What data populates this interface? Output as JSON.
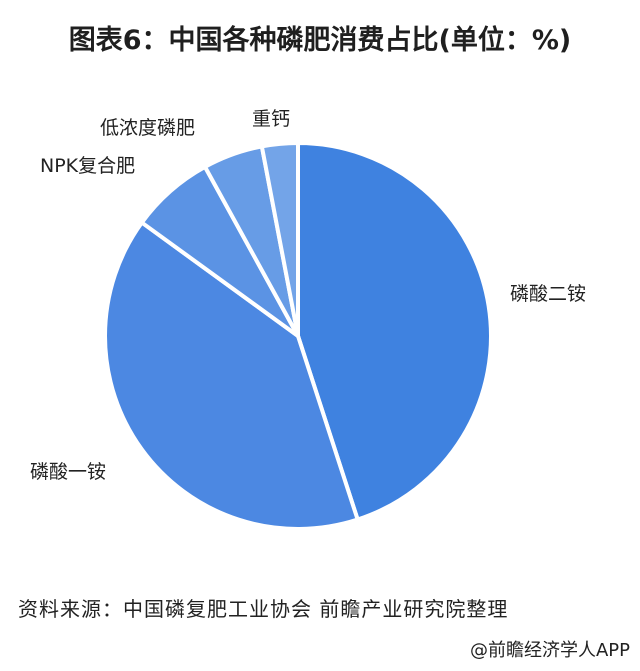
{
  "title": "图表6：中国各种磷肥消费占比(单位：%)",
  "chart_data": {
    "type": "pie",
    "title": "图表6：中国各种磷肥消费占比(单位：%)",
    "unit": "%",
    "start_angle_deg": 0,
    "direction": "clockwise",
    "labels_on_chart": true,
    "slices": [
      {
        "label": "磷酸二铵",
        "value": 45,
        "color": "#3f82e0"
      },
      {
        "label": "磷酸一铵",
        "value": 40,
        "color": "#4c88e2"
      },
      {
        "label": "NPK复合肥",
        "value": 7,
        "color": "#5b93e4"
      },
      {
        "label": "低浓度磷肥",
        "value": 5,
        "color": "#679ce6"
      },
      {
        "label": "重钙",
        "value": 3,
        "color": "#73a4e8"
      }
    ]
  },
  "source": "资料来源：中国磷复肥工业协会 前瞻产业研究院整理",
  "credit": "@前瞻经济学人APP"
}
